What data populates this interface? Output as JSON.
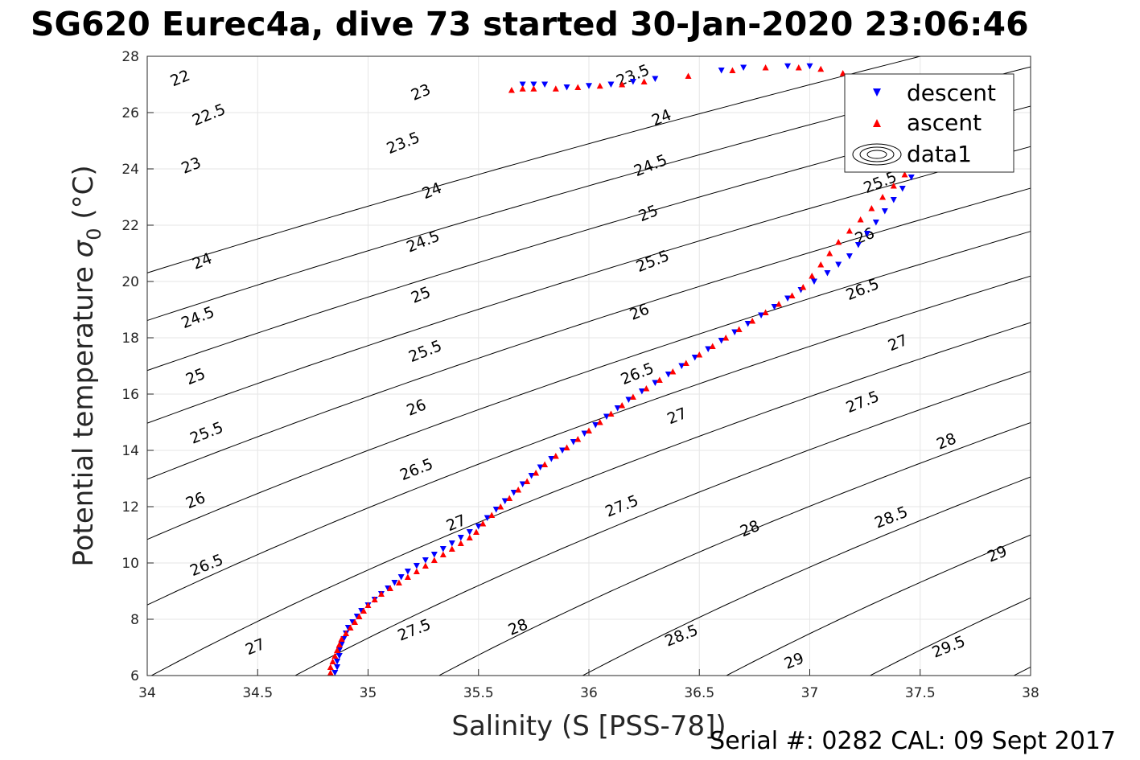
{
  "title": "SG620 Eurec4a, dive 73 started 30-Jan-2020 23:06:46",
  "footer": "Serial #: 0282  CAL: 09 Sept 2017",
  "chart_data": {
    "type": "scatter",
    "title": "SG620 Eurec4a, dive 73 started 30-Jan-2020 23:06:46",
    "xlabel": "Salinity (S [PSS-78])",
    "ylabel": "Potential temperature σ_0 (°C)",
    "ylabel_main": "Potential temperature ",
    "ylabel_sigma": "σ",
    "ylabel_sub": "0",
    "ylabel_unit": " (°C)",
    "xlim": [
      34,
      38
    ],
    "ylim": [
      6,
      28
    ],
    "xticks": [
      "34",
      "34.5",
      "35",
      "35.5",
      "36",
      "36.5",
      "37",
      "37.5",
      "38"
    ],
    "yticks": [
      "6",
      "8",
      "10",
      "12",
      "14",
      "16",
      "18",
      "20",
      "22",
      "24",
      "26",
      "28"
    ],
    "grid": true,
    "legend_position": "top-right",
    "legend": [
      "descent",
      "ascent",
      "data1"
    ],
    "colors": {
      "descent": "#0000ff",
      "ascent": "#ff0000",
      "contour": "#000000",
      "grid": "#e6e6e6"
    },
    "contours": {
      "levels": [
        22,
        22.5,
        23,
        23.5,
        24,
        24.5,
        25,
        25.5,
        26,
        26.5,
        27,
        27.5,
        28,
        28.5,
        29,
        29.5
      ],
      "labels": [
        {
          "text": "22",
          "s": 34.15,
          "t": 27.2
        },
        {
          "text": "22.5",
          "s": 34.28,
          "t": 25.9
        },
        {
          "text": "23",
          "s": 34.2,
          "t": 24.1
        },
        {
          "text": "24",
          "s": 34.25,
          "t": 20.7
        },
        {
          "text": "24.5",
          "s": 34.23,
          "t": 18.7
        },
        {
          "text": "25",
          "s": 34.22,
          "t": 16.6
        },
        {
          "text": "25.5",
          "s": 34.27,
          "t": 14.6
        },
        {
          "text": "26",
          "s": 34.22,
          "t": 12.2
        },
        {
          "text": "26.5",
          "s": 34.27,
          "t": 9.9
        },
        {
          "text": "27",
          "s": 34.49,
          "t": 7.0
        },
        {
          "text": "23",
          "s": 35.24,
          "t": 26.7
        },
        {
          "text": "23.5",
          "s": 35.16,
          "t": 24.9
        },
        {
          "text": "24",
          "s": 35.29,
          "t": 23.2
        },
        {
          "text": "24.5",
          "s": 35.25,
          "t": 21.4
        },
        {
          "text": "25",
          "s": 35.24,
          "t": 19.5
        },
        {
          "text": "25.5",
          "s": 35.26,
          "t": 17.5
        },
        {
          "text": "26",
          "s": 35.22,
          "t": 15.5
        },
        {
          "text": "26.5",
          "s": 35.22,
          "t": 13.3
        },
        {
          "text": "27",
          "s": 35.4,
          "t": 11.4
        },
        {
          "text": "27.5",
          "s": 35.21,
          "t": 7.6
        },
        {
          "text": "23.5",
          "s": 36.2,
          "t": 27.3
        },
        {
          "text": "24",
          "s": 36.33,
          "t": 25.8
        },
        {
          "text": "24.5",
          "s": 36.28,
          "t": 24.1
        },
        {
          "text": "25",
          "s": 36.27,
          "t": 22.4
        },
        {
          "text": "25.5",
          "s": 36.29,
          "t": 20.7
        },
        {
          "text": "26",
          "s": 36.23,
          "t": 18.9
        },
        {
          "text": "26.5",
          "s": 36.22,
          "t": 16.7
        },
        {
          "text": "27",
          "s": 36.4,
          "t": 15.2
        },
        {
          "text": "27.5",
          "s": 36.15,
          "t": 12.0
        },
        {
          "text": "28",
          "s": 35.68,
          "t": 7.7
        },
        {
          "text": "28.5",
          "s": 36.42,
          "t": 7.4
        },
        {
          "text": "28",
          "s": 36.73,
          "t": 11.2
        },
        {
          "text": "29",
          "s": 36.93,
          "t": 6.5
        },
        {
          "text": "25.5",
          "s": 37.32,
          "t": 23.5
        },
        {
          "text": "26",
          "s": 37.25,
          "t": 21.6
        },
        {
          "text": "26.5",
          "s": 37.24,
          "t": 19.7
        },
        {
          "text": "27",
          "s": 37.4,
          "t": 17.8
        },
        {
          "text": "27.5",
          "s": 37.24,
          "t": 15.7
        },
        {
          "text": "28",
          "s": 37.62,
          "t": 14.3
        },
        {
          "text": "28.5",
          "s": 37.37,
          "t": 11.6
        },
        {
          "text": "29",
          "s": 37.85,
          "t": 10.3
        },
        {
          "text": "29.5",
          "s": 37.63,
          "t": 7.0
        }
      ]
    },
    "series": [
      {
        "name": "descent",
        "marker": "triangle-down",
        "points": [
          [
            34.85,
            6.1
          ],
          [
            34.86,
            6.3
          ],
          [
            34.86,
            6.5
          ],
          [
            34.87,
            6.7
          ],
          [
            34.87,
            6.9
          ],
          [
            34.88,
            7.1
          ],
          [
            34.89,
            7.3
          ],
          [
            34.9,
            7.5
          ],
          [
            34.91,
            7.7
          ],
          [
            34.93,
            7.9
          ],
          [
            34.95,
            8.1
          ],
          [
            34.97,
            8.3
          ],
          [
            35.0,
            8.5
          ],
          [
            35.03,
            8.7
          ],
          [
            35.06,
            8.9
          ],
          [
            35.09,
            9.1
          ],
          [
            35.12,
            9.3
          ],
          [
            35.15,
            9.5
          ],
          [
            35.18,
            9.7
          ],
          [
            35.22,
            9.9
          ],
          [
            35.26,
            10.1
          ],
          [
            35.3,
            10.3
          ],
          [
            35.34,
            10.5
          ],
          [
            35.38,
            10.7
          ],
          [
            35.42,
            10.9
          ],
          [
            35.46,
            11.1
          ],
          [
            35.5,
            11.3
          ],
          [
            35.54,
            11.6
          ],
          [
            35.58,
            11.9
          ],
          [
            35.62,
            12.2
          ],
          [
            35.66,
            12.5
          ],
          [
            35.7,
            12.8
          ],
          [
            35.74,
            13.1
          ],
          [
            35.78,
            13.4
          ],
          [
            35.83,
            13.7
          ],
          [
            35.88,
            14.0
          ],
          [
            35.93,
            14.3
          ],
          [
            35.98,
            14.6
          ],
          [
            36.03,
            14.9
          ],
          [
            36.08,
            15.2
          ],
          [
            36.13,
            15.5
          ],
          [
            36.18,
            15.8
          ],
          [
            36.24,
            16.1
          ],
          [
            36.3,
            16.4
          ],
          [
            36.36,
            16.7
          ],
          [
            36.42,
            17.0
          ],
          [
            36.48,
            17.3
          ],
          [
            36.54,
            17.6
          ],
          [
            36.6,
            17.9
          ],
          [
            36.66,
            18.2
          ],
          [
            36.72,
            18.5
          ],
          [
            36.78,
            18.8
          ],
          [
            36.84,
            19.1
          ],
          [
            36.9,
            19.4
          ],
          [
            36.96,
            19.7
          ],
          [
            37.02,
            20.0
          ],
          [
            37.08,
            20.3
          ],
          [
            37.13,
            20.6
          ],
          [
            37.18,
            20.9
          ],
          [
            37.22,
            21.3
          ],
          [
            37.26,
            21.7
          ],
          [
            37.3,
            22.1
          ],
          [
            37.34,
            22.5
          ],
          [
            37.38,
            22.9
          ],
          [
            37.42,
            23.3
          ],
          [
            37.46,
            23.7
          ],
          [
            37.5,
            24.1
          ],
          [
            37.54,
            24.5
          ],
          [
            37.58,
            24.9
          ],
          [
            37.62,
            25.3
          ],
          [
            37.66,
            25.8
          ],
          [
            37.72,
            26.3
          ],
          [
            37.78,
            26.7
          ],
          [
            35.7,
            27.0
          ],
          [
            35.75,
            27.0
          ],
          [
            35.8,
            27.0
          ],
          [
            35.9,
            26.9
          ],
          [
            36.0,
            26.95
          ],
          [
            36.1,
            27.0
          ],
          [
            36.2,
            27.1
          ],
          [
            36.3,
            27.2
          ],
          [
            36.6,
            27.5
          ],
          [
            36.7,
            27.6
          ],
          [
            36.9,
            27.65
          ],
          [
            37.0,
            27.65
          ]
        ]
      },
      {
        "name": "ascent",
        "marker": "triangle-up",
        "points": [
          [
            34.83,
            6.1
          ],
          [
            34.83,
            6.3
          ],
          [
            34.84,
            6.5
          ],
          [
            34.85,
            6.7
          ],
          [
            34.86,
            6.9
          ],
          [
            34.87,
            7.1
          ],
          [
            34.88,
            7.3
          ],
          [
            34.9,
            7.5
          ],
          [
            34.92,
            7.7
          ],
          [
            34.94,
            7.9
          ],
          [
            34.96,
            8.1
          ],
          [
            34.98,
            8.3
          ],
          [
            35.0,
            8.5
          ],
          [
            35.03,
            8.7
          ],
          [
            35.06,
            8.9
          ],
          [
            35.1,
            9.1
          ],
          [
            35.14,
            9.3
          ],
          [
            35.18,
            9.5
          ],
          [
            35.22,
            9.7
          ],
          [
            35.26,
            9.9
          ],
          [
            35.3,
            10.1
          ],
          [
            35.34,
            10.3
          ],
          [
            35.38,
            10.5
          ],
          [
            35.42,
            10.7
          ],
          [
            35.46,
            10.9
          ],
          [
            35.49,
            11.1
          ],
          [
            35.52,
            11.4
          ],
          [
            35.56,
            11.7
          ],
          [
            35.6,
            12.0
          ],
          [
            35.64,
            12.3
          ],
          [
            35.68,
            12.6
          ],
          [
            35.72,
            12.9
          ],
          [
            35.76,
            13.2
          ],
          [
            35.8,
            13.5
          ],
          [
            35.85,
            13.8
          ],
          [
            35.9,
            14.1
          ],
          [
            35.95,
            14.4
          ],
          [
            36.0,
            14.7
          ],
          [
            36.05,
            15.0
          ],
          [
            36.1,
            15.3
          ],
          [
            36.15,
            15.6
          ],
          [
            36.2,
            15.9
          ],
          [
            36.26,
            16.2
          ],
          [
            36.32,
            16.5
          ],
          [
            36.38,
            16.8
          ],
          [
            36.44,
            17.1
          ],
          [
            36.5,
            17.4
          ],
          [
            36.56,
            17.7
          ],
          [
            36.62,
            18.0
          ],
          [
            36.68,
            18.3
          ],
          [
            36.74,
            18.6
          ],
          [
            36.8,
            18.9
          ],
          [
            36.86,
            19.2
          ],
          [
            36.92,
            19.5
          ],
          [
            36.97,
            19.8
          ],
          [
            37.01,
            20.2
          ],
          [
            37.05,
            20.6
          ],
          [
            37.09,
            21.0
          ],
          [
            37.13,
            21.4
          ],
          [
            37.18,
            21.8
          ],
          [
            37.23,
            22.2
          ],
          [
            37.28,
            22.6
          ],
          [
            37.33,
            23.0
          ],
          [
            37.38,
            23.4
          ],
          [
            37.43,
            23.8
          ],
          [
            37.48,
            24.2
          ],
          [
            37.53,
            24.6
          ],
          [
            37.58,
            25.0
          ],
          [
            37.63,
            25.4
          ],
          [
            37.68,
            25.8
          ],
          [
            37.72,
            26.2
          ],
          [
            37.76,
            26.6
          ],
          [
            37.8,
            26.9
          ],
          [
            35.65,
            26.8
          ],
          [
            35.7,
            26.85
          ],
          [
            35.75,
            26.85
          ],
          [
            35.85,
            26.85
          ],
          [
            35.95,
            26.9
          ],
          [
            36.05,
            26.95
          ],
          [
            36.15,
            27.0
          ],
          [
            36.25,
            27.1
          ],
          [
            36.45,
            27.3
          ],
          [
            36.65,
            27.5
          ],
          [
            36.8,
            27.6
          ],
          [
            36.95,
            27.6
          ],
          [
            37.05,
            27.55
          ],
          [
            37.15,
            27.4
          ]
        ]
      }
    ]
  }
}
